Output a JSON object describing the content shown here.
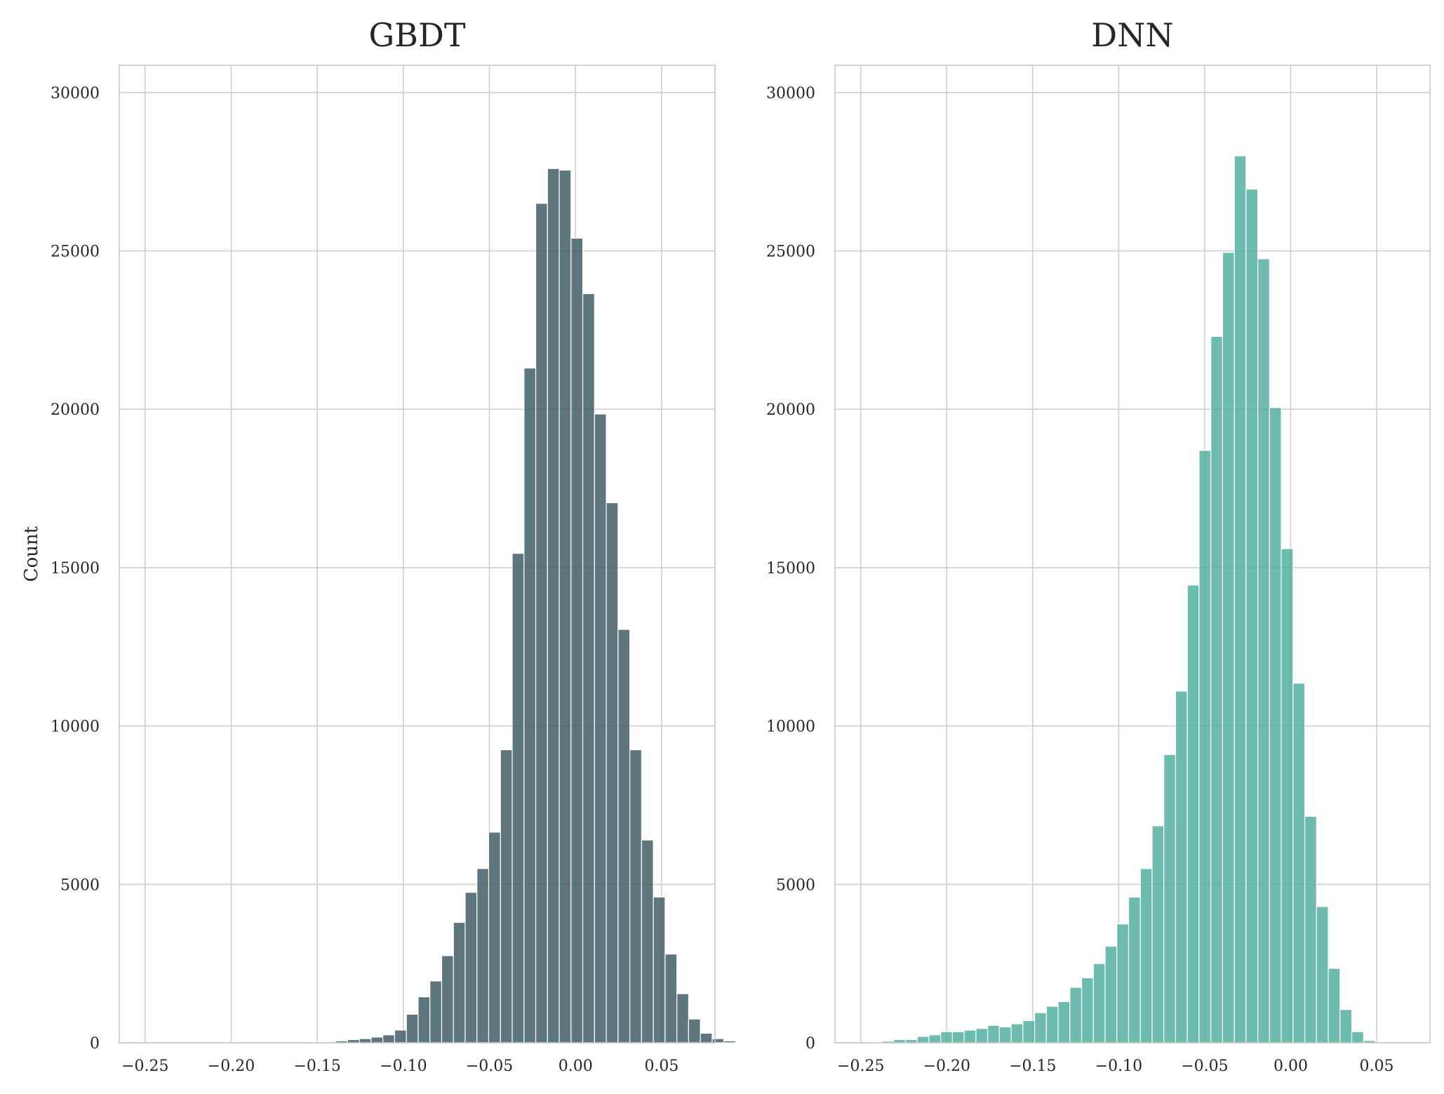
{
  "chart_data": [
    {
      "type": "bar",
      "title": "GBDT",
      "xlabel": "",
      "ylabel": "Count",
      "color": "#36545e",
      "xlim": [
        -0.265,
        0.081
      ],
      "ylim": [
        0,
        30860
      ],
      "xticks": [
        -0.25,
        -0.2,
        -0.15,
        -0.1,
        -0.05,
        0.0,
        0.05
      ],
      "xtick_labels": [
        "−0.25",
        "−0.20",
        "−0.15",
        "−0.10",
        "−0.05",
        "0.00",
        "0.05"
      ],
      "yticks": [
        0,
        5000,
        10000,
        15000,
        20000,
        25000,
        30000
      ],
      "ytick_labels": [
        "0",
        "5000",
        "10000",
        "15000",
        "20000",
        "25000",
        "30000"
      ],
      "grid": true,
      "bin_start": -0.2485,
      "bin_width": 0.00683,
      "values": [
        0,
        0,
        0,
        0,
        0,
        0,
        0,
        0,
        0,
        0,
        0,
        0,
        0,
        0,
        20,
        30,
        60,
        100,
        130,
        180,
        250,
        400,
        900,
        1450,
        1950,
        2750,
        3800,
        4750,
        5500,
        6650,
        9250,
        15450,
        21300,
        26500,
        27600,
        27550,
        25400,
        23650,
        19850,
        17050,
        13050,
        9250,
        6400,
        4600,
        2800,
        1550,
        750,
        300,
        130,
        60,
        20,
        0
      ]
    },
    {
      "type": "bar",
      "title": "DNN",
      "xlabel": "",
      "ylabel": "",
      "color": "#4aaa9c",
      "xlim": [
        -0.265,
        0.081
      ],
      "ylim": [
        0,
        30860
      ],
      "xticks": [
        -0.25,
        -0.2,
        -0.15,
        -0.1,
        -0.05,
        0.0,
        0.05
      ],
      "xtick_labels": [
        "−0.25",
        "−0.20",
        "−0.15",
        "−0.10",
        "−0.05",
        "0.00",
        "0.05"
      ],
      "yticks": [
        0,
        5000,
        10000,
        15000,
        20000,
        25000,
        30000
      ],
      "ytick_labels": [
        "0",
        "5000",
        "10000",
        "15000",
        "20000",
        "25000",
        "30000"
      ],
      "grid": true,
      "bin_start": -0.2445,
      "bin_width": 0.00683,
      "values": [
        20,
        50,
        100,
        100,
        200,
        250,
        350,
        350,
        400,
        450,
        550,
        500,
        600,
        700,
        950,
        1150,
        1300,
        1750,
        2050,
        2500,
        3050,
        3750,
        4600,
        5500,
        6850,
        9100,
        11100,
        14450,
        18700,
        22300,
        24950,
        28000,
        26950,
        24750,
        20050,
        15600,
        11350,
        7150,
        4300,
        2350,
        1050,
        350,
        70
      ]
    }
  ]
}
